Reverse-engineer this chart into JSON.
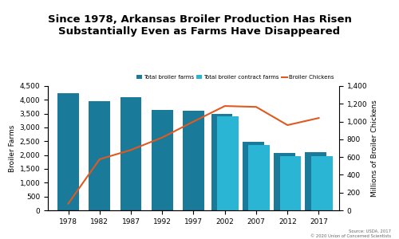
{
  "title": "Since 1978, Arkansas Broiler Production Has Risen\nSubstantially Even as Farms Have Disappeared",
  "years": [
    1978,
    1982,
    1987,
    1992,
    1997,
    2002,
    2007,
    2012,
    2017
  ],
  "total_broiler_farms": [
    4250,
    3950,
    4100,
    3625,
    3600,
    3500,
    2475,
    2075,
    2100
  ],
  "total_broiler_contract_farms": [
    null,
    null,
    null,
    null,
    null,
    3400,
    2375,
    1950,
    1960
  ],
  "broiler_chickens_millions": [
    75,
    575,
    680,
    820,
    1000,
    1175,
    1165,
    960,
    1040
  ],
  "bar_color_dark": "#1a7a99",
  "bar_color_light": "#2ab5d4",
  "line_color": "#e05a20",
  "ylabel_left": "Broiler Farms",
  "ylabel_right": "Millions of Broiler Chickens",
  "ylim_left": [
    0,
    4500
  ],
  "ylim_right": [
    0,
    1400
  ],
  "yticks_left": [
    0,
    500,
    1000,
    1500,
    2000,
    2500,
    3000,
    3500,
    4000,
    4500
  ],
  "yticks_right": [
    0,
    200,
    400,
    600,
    800,
    1000,
    1200,
    1400
  ],
  "legend_labels": [
    "Total broiler farms",
    "Total broiler contract farms",
    "Broiler Chickens"
  ],
  "source_text": "Source: USDA, 2017\n© 2020 Union of Concerned Scientists",
  "background_color": "#ffffff",
  "title_fontsize": 9.5,
  "bar_width": 0.38
}
